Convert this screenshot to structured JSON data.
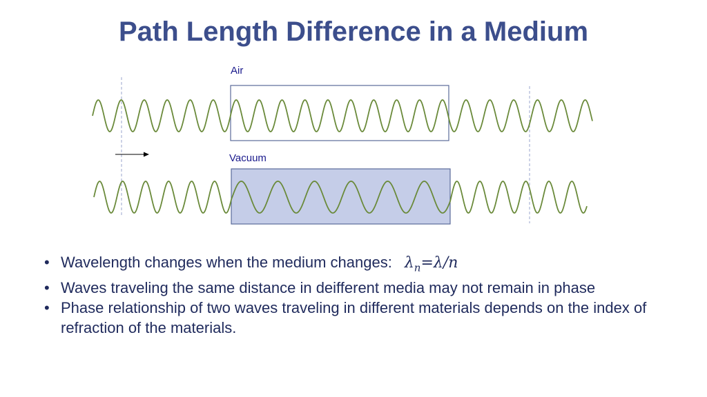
{
  "slide": {
    "title": "Path Length Difference in a Medium"
  },
  "diagram": {
    "top_region_label": "Air",
    "bottom_region_label": "Vacuum",
    "colors": {
      "wave": "#6a8a3a",
      "box_border": "#5a6a9a",
      "vacuum_fill": "#c5cde8",
      "guide_line": "#9aa4cc",
      "arrow": "#000000"
    },
    "icons": {
      "direction": "right-arrow-icon"
    }
  },
  "bullets": {
    "item1_text": "Wavelength changes when the medium changes:",
    "item1_formula": {
      "lambda": "λ",
      "subscript": "n",
      "rhs": "=λ/n"
    },
    "item2_text": "Waves traveling the same distance in deifferent media may not remain in phase",
    "item3_text": "Phase relationship of two waves traveling in different materials depends on the index of refraction of the materials."
  }
}
